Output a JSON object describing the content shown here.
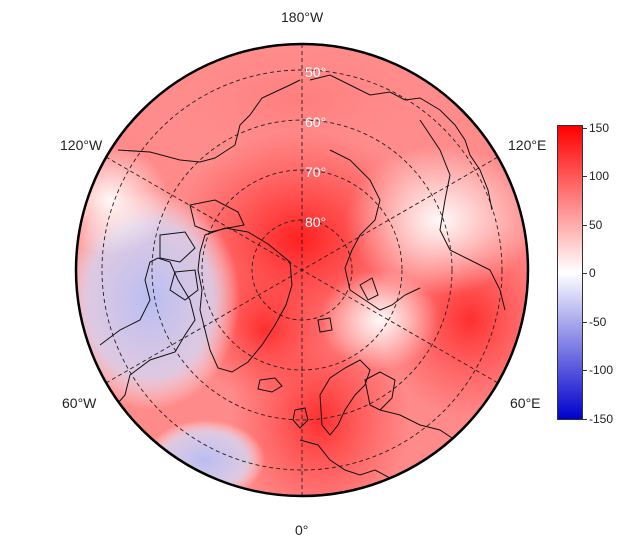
{
  "map": {
    "projection": "north-polar-stereographic",
    "variable_colormap": {
      "low": "#0000cc",
      "mid": "#ffffff",
      "high": "#ff0000"
    },
    "meridian_labels": {
      "top": "180°W",
      "upper_left": "120°W",
      "upper_right": "120°E",
      "lower_left": "60°W",
      "lower_right": "60°E",
      "bottom": "0°"
    },
    "latitude_labels": [
      "50°",
      "60°",
      "70°",
      "80°"
    ],
    "colorbar": {
      "range": [
        -150,
        150
      ],
      "ticks": [
        "150",
        "100",
        "50",
        "0",
        "-50",
        "-100",
        "-150"
      ]
    }
  }
}
